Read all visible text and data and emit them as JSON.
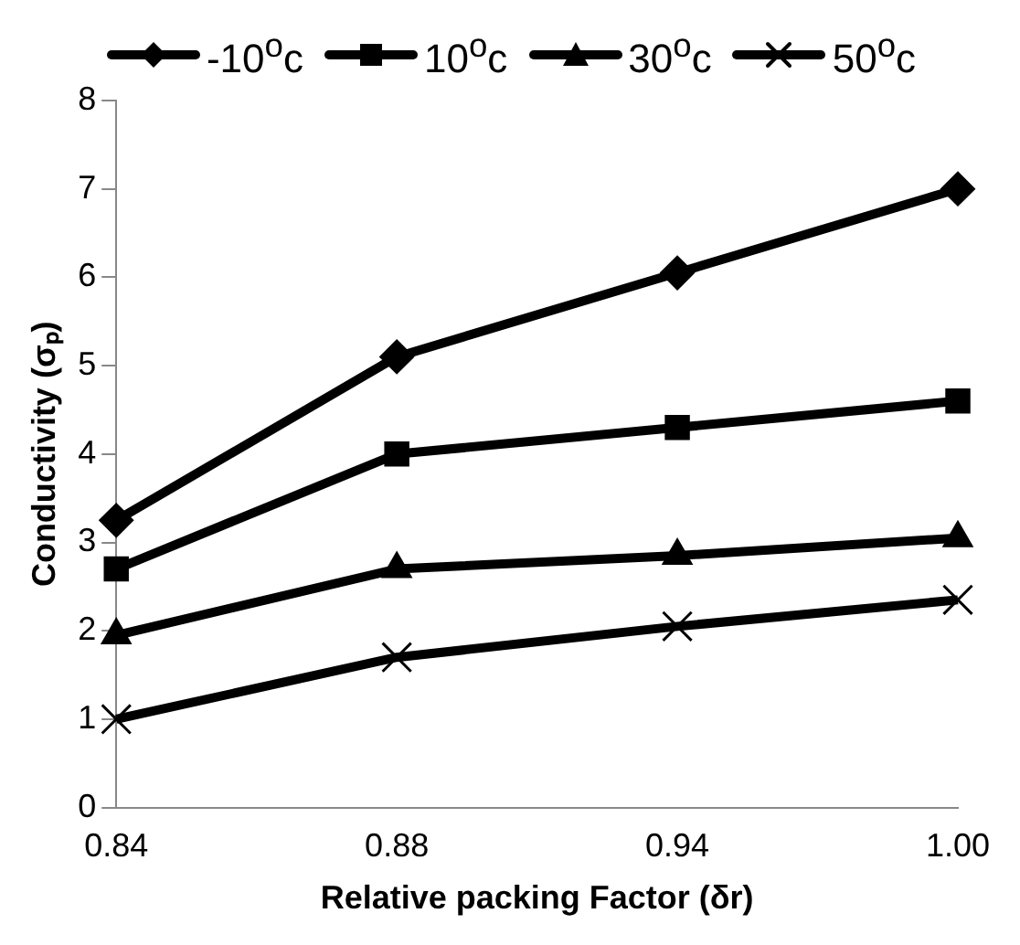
{
  "chart_data": {
    "type": "line",
    "xlabel": "Relative packing Factor (δr)",
    "ylabel": "Conductivity (σₚ)",
    "categories": [
      "0.84",
      "0.88",
      "0.94",
      "1.00"
    ],
    "ylim": [
      0,
      8
    ],
    "yticks": [
      0,
      1,
      2,
      3,
      4,
      5,
      6,
      7,
      8
    ],
    "grid": false,
    "legend": "top",
    "line_style": "solid",
    "series": [
      {
        "name": "-10$^{o}$c",
        "color": "#000000",
        "marker": "diamond",
        "values": [
          3.25,
          5.1,
          6.05,
          7.0
        ]
      },
      {
        "name": "10$^{o}$c",
        "color": "#000000",
        "marker": "square",
        "values": [
          2.7,
          4.0,
          4.3,
          4.6
        ]
      },
      {
        "name": "30$^{o}$c",
        "color": "#000000",
        "marker": "triangle",
        "values": [
          1.95,
          2.7,
          2.85,
          3.05
        ]
      },
      {
        "name": "50$^{o}$c",
        "color": "#000000",
        "marker": "cross",
        "values": [
          1.0,
          1.7,
          2.05,
          2.35
        ]
      }
    ]
  }
}
